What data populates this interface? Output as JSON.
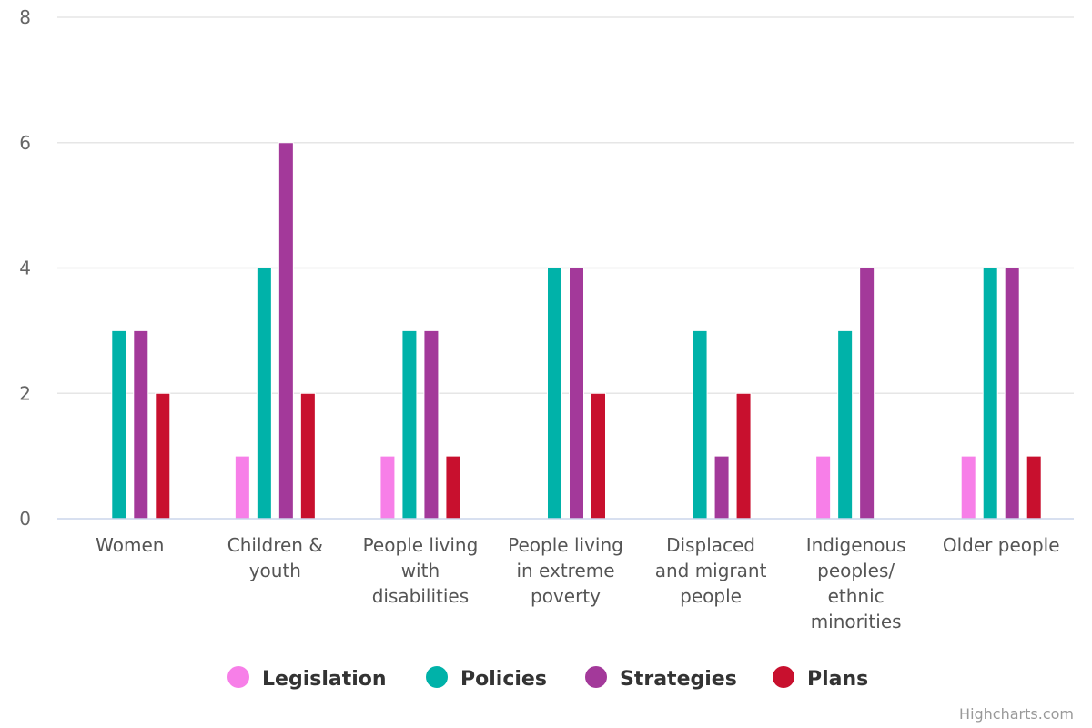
{
  "chart_data": {
    "type": "bar",
    "categories": [
      "Women",
      "Children & youth",
      "People living with disabilities",
      "People living in extreme poverty",
      "Displaced and migrant people",
      "Indigenous peoples/ ethnic minorities",
      "Older people"
    ],
    "category_lines": [
      [
        "Women"
      ],
      [
        "Children &",
        "youth"
      ],
      [
        "People living",
        "with",
        "disabilities"
      ],
      [
        "People living",
        "in extreme",
        "poverty"
      ],
      [
        "Displaced",
        "and migrant",
        "people"
      ],
      [
        "Indigenous",
        "peoples/",
        "ethnic",
        "minorities"
      ],
      [
        "Older people"
      ]
    ],
    "series": [
      {
        "name": "Legislation",
        "color": "#f77fe8",
        "values": [
          0,
          1,
          1,
          0,
          0,
          1,
          1
        ]
      },
      {
        "name": "Policies",
        "color": "#00b2a9",
        "values": [
          3,
          4,
          3,
          4,
          3,
          3,
          4
        ]
      },
      {
        "name": "Strategies",
        "color": "#a3399a",
        "values": [
          3,
          6,
          3,
          4,
          1,
          4,
          4
        ]
      },
      {
        "name": "Plans",
        "color": "#c8102e",
        "values": [
          2,
          2,
          1,
          2,
          2,
          0,
          1
        ]
      }
    ],
    "ylim": [
      0,
      8
    ],
    "yticks": [
      0,
      2,
      4,
      6,
      8
    ],
    "grid": true,
    "legend_position": "bottom-center"
  },
  "credits": "Highcharts.com"
}
